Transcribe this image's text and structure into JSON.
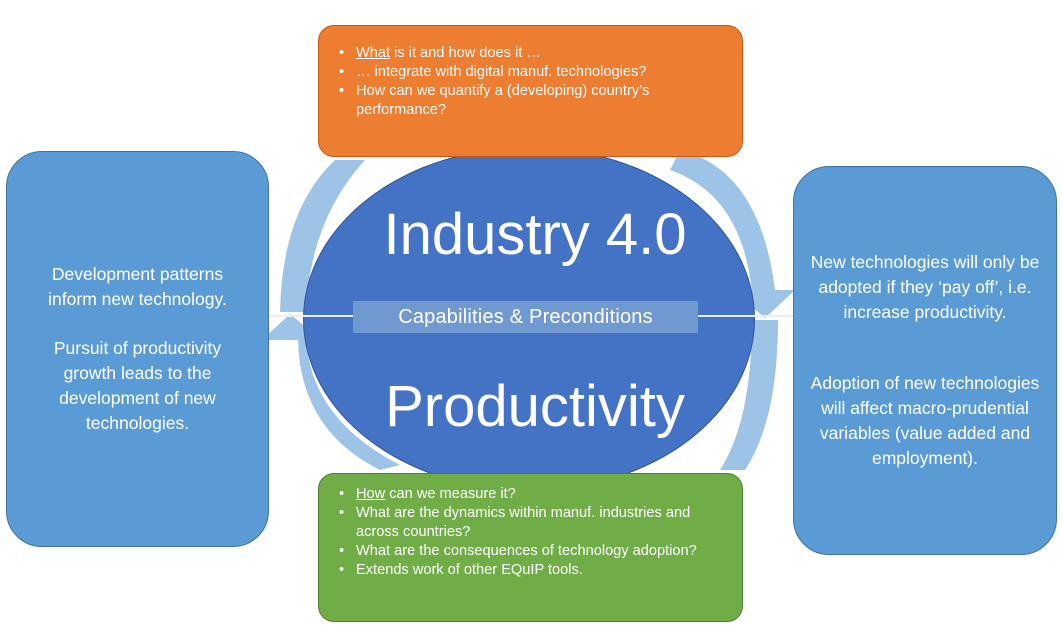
{
  "colors": {
    "left_box": "#5b9bd5",
    "right_box": "#5b9bd5",
    "circle": "#4472c4",
    "ring_arrow": "#9dc3e6",
    "top_box": "#ed7d31",
    "bottom_box": "#70ad47",
    "text": "#ffffff"
  },
  "left_box": {
    "line1": "Development patterns inform new technology.",
    "line2": "Pursuit of productivity growth leads to the development of new technologies."
  },
  "right_box": {
    "line1": "New technologies will only be adopted if they ‘pay off’, i.e. increase productivity.",
    "line2": "Adoption of new technologies will affect macro-prudential variables (value added and employment)."
  },
  "center": {
    "top_title": "Industry 4.0",
    "bottom_title": "Productivity",
    "band_label": "Capabilities & Preconditions"
  },
  "top_box": {
    "item1_em": "What",
    "item1_rest": " is it and how does it …",
    "item2": "… integrate with digital manuf. technologies?",
    "item3": "How can we quantify a (developing) country’s performance?"
  },
  "bottom_box": {
    "item1_em": "How",
    "item1_rest": " can we measure it?",
    "item2": "What are the dynamics within manuf. industries and across countries?",
    "item3": "What are the consequences of technology adoption?",
    "item4": " Extends work of other EQuIP tools."
  }
}
